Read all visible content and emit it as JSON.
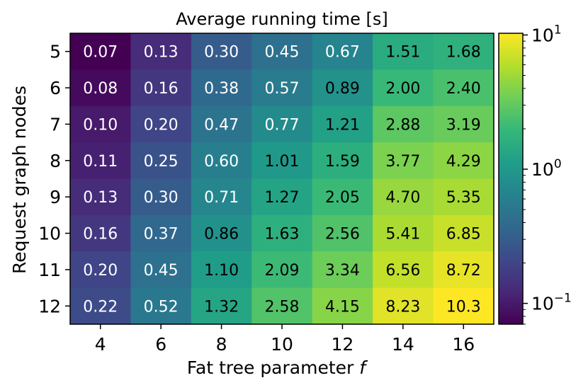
{
  "chart_data": {
    "type": "heatmap",
    "title": "Average running time [s]",
    "xlabel": "Fat tree parameter ",
    "xlabel_italic": "f",
    "ylabel": "Request graph nodes",
    "x_categories": [
      "4",
      "6",
      "8",
      "10",
      "12",
      "14",
      "16"
    ],
    "y_categories": [
      "5",
      "6",
      "7",
      "8",
      "9",
      "10",
      "11",
      "12"
    ],
    "values": [
      [
        0.07,
        0.13,
        0.3,
        0.45,
        0.67,
        1.51,
        1.68
      ],
      [
        0.08,
        0.16,
        0.38,
        0.57,
        0.89,
        2.0,
        2.4
      ],
      [
        0.1,
        0.2,
        0.47,
        0.77,
        1.21,
        2.88,
        3.19
      ],
      [
        0.11,
        0.25,
        0.6,
        1.01,
        1.59,
        3.77,
        4.29
      ],
      [
        0.13,
        0.3,
        0.71,
        1.27,
        2.05,
        4.7,
        5.35
      ],
      [
        0.16,
        0.37,
        0.86,
        1.63,
        2.56,
        5.41,
        6.85
      ],
      [
        0.2,
        0.45,
        1.1,
        2.09,
        3.34,
        6.56,
        8.72
      ],
      [
        0.22,
        0.52,
        1.32,
        2.58,
        4.15,
        8.23,
        10.3
      ]
    ],
    "labels": [
      [
        "0.07",
        "0.13",
        "0.30",
        "0.45",
        "0.67",
        "1.51",
        "1.68"
      ],
      [
        "0.08",
        "0.16",
        "0.38",
        "0.57",
        "0.89",
        "2.00",
        "2.40"
      ],
      [
        "0.10",
        "0.20",
        "0.47",
        "0.77",
        "1.21",
        "2.88",
        "3.19"
      ],
      [
        "0.11",
        "0.25",
        "0.60",
        "1.01",
        "1.59",
        "3.77",
        "4.29"
      ],
      [
        "0.13",
        "0.30",
        "0.71",
        "1.27",
        "2.05",
        "4.70",
        "5.35"
      ],
      [
        "0.16",
        "0.37",
        "0.86",
        "1.63",
        "2.56",
        "5.41",
        "6.85"
      ],
      [
        "0.20",
        "0.45",
        "1.10",
        "2.09",
        "3.34",
        "6.56",
        "8.72"
      ],
      [
        "0.22",
        "0.52",
        "1.32",
        "2.58",
        "4.15",
        "8.23",
        "10.3"
      ]
    ],
    "colormap": "viridis",
    "color_scale": "log",
    "color_range": [
      0.07,
      10.3
    ],
    "colorbar": {
      "ticks": [
        {
          "base": "10",
          "exp": "1",
          "value": 10
        },
        {
          "base": "10",
          "exp": "0",
          "value": 1
        },
        {
          "base": "10",
          "exp": "−1",
          "value": 0.1
        }
      ]
    },
    "colormap_stops": [
      "#440154",
      "#482878",
      "#3e4989",
      "#31688e",
      "#26828e",
      "#1f9e89",
      "#35b779",
      "#6ece58",
      "#b5de2b",
      "#fde725"
    ]
  }
}
